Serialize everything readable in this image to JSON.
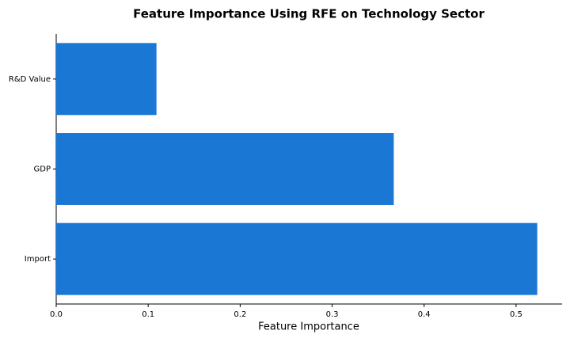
{
  "chart_data": {
    "type": "barh",
    "title": "Feature Importance Using RFE on Technology Sector",
    "x_label": "Feature Importance",
    "categories": [
      "R&D Value",
      "GDP",
      "Import"
    ],
    "values": [
      0.109,
      0.367,
      0.523
    ],
    "color": "#1b77d4",
    "xlim": [
      0,
      0.55
    ],
    "xticks": [
      {
        "value": 0,
        "label": "0.0"
      },
      0.1,
      0.2,
      0.3,
      0.4,
      0.5
    ],
    "grid": false
  }
}
